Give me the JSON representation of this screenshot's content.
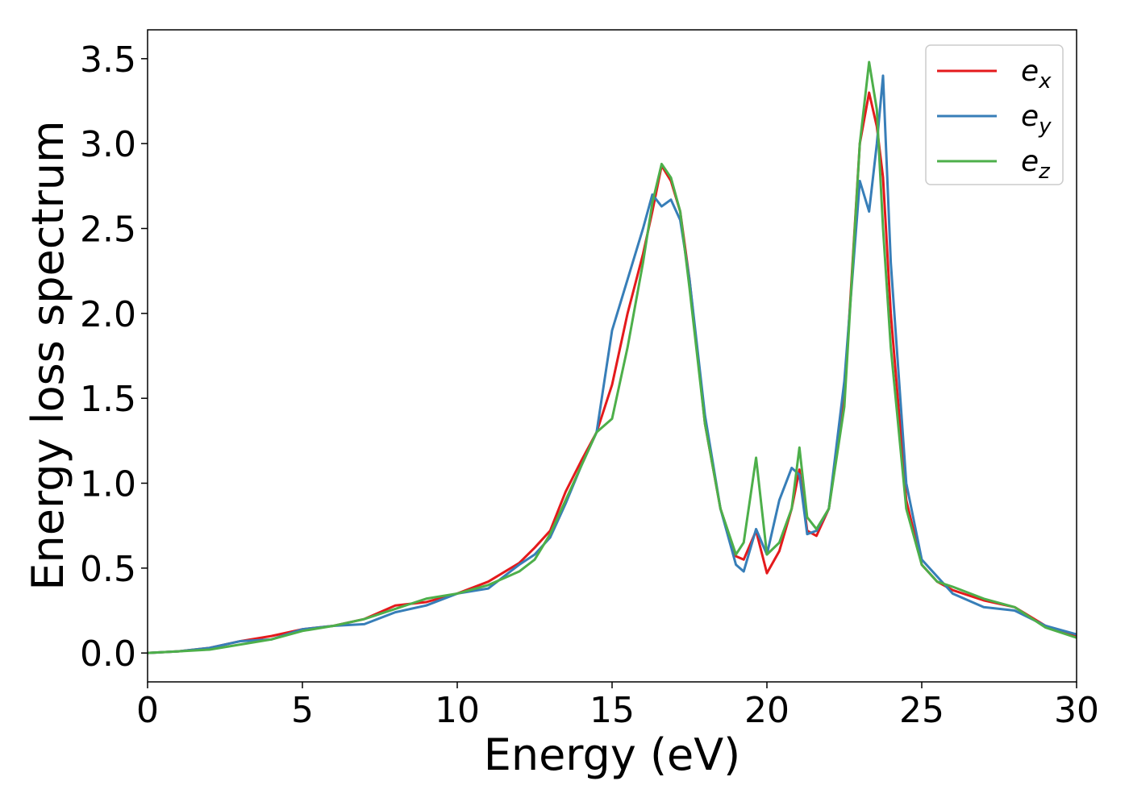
{
  "chart_data": {
    "type": "line",
    "xlabel": "Energy (eV)",
    "ylabel": "Energy loss spectrum",
    "x": [
      0,
      1,
      2,
      3,
      4,
      5,
      6,
      7,
      8,
      9,
      10,
      11,
      12,
      12.5,
      13,
      13.5,
      14,
      14.5,
      15,
      15.5,
      16,
      16.3,
      16.6,
      16.9,
      17.2,
      17.5,
      18,
      18.5,
      19,
      19.25,
      19.65,
      20,
      20.4,
      20.8,
      21.05,
      21.3,
      21.6,
      22,
      22.5,
      23,
      23.3,
      23.55,
      23.75,
      24,
      24.5,
      25,
      25.5,
      26,
      27,
      28,
      29,
      30
    ],
    "series": [
      {
        "name": "ex",
        "color": "#e41a1c",
        "values": [
          0,
          0.01,
          0.03,
          0.07,
          0.1,
          0.14,
          0.16,
          0.2,
          0.28,
          0.3,
          0.35,
          0.42,
          0.53,
          0.62,
          0.72,
          0.95,
          1.13,
          1.3,
          1.58,
          2.0,
          2.35,
          2.6,
          2.87,
          2.78,
          2.6,
          2.2,
          1.35,
          0.85,
          0.57,
          0.55,
          0.72,
          0.47,
          0.6,
          0.85,
          1.08,
          0.72,
          0.69,
          0.85,
          1.5,
          3.0,
          3.3,
          3.1,
          2.8,
          2.0,
          0.9,
          0.52,
          0.42,
          0.37,
          0.31,
          0.27,
          0.16,
          0.1
        ]
      },
      {
        "name": "ey",
        "color": "#377eb8",
        "values": [
          0,
          0.01,
          0.03,
          0.07,
          0.08,
          0.14,
          0.16,
          0.17,
          0.24,
          0.28,
          0.35,
          0.38,
          0.52,
          0.58,
          0.68,
          0.88,
          1.1,
          1.3,
          1.9,
          2.2,
          2.5,
          2.7,
          2.63,
          2.67,
          2.55,
          2.2,
          1.4,
          0.85,
          0.52,
          0.48,
          0.73,
          0.58,
          0.9,
          1.09,
          1.05,
          0.7,
          0.72,
          0.85,
          1.6,
          2.78,
          2.6,
          3.0,
          3.4,
          2.3,
          1.0,
          0.55,
          0.45,
          0.35,
          0.27,
          0.25,
          0.16,
          0.11
        ]
      },
      {
        "name": "ez",
        "color": "#4daf4a",
        "values": [
          0,
          0.01,
          0.02,
          0.05,
          0.08,
          0.13,
          0.16,
          0.2,
          0.26,
          0.32,
          0.35,
          0.4,
          0.48,
          0.55,
          0.7,
          0.9,
          1.1,
          1.3,
          1.38,
          1.8,
          2.3,
          2.65,
          2.88,
          2.8,
          2.6,
          2.15,
          1.35,
          0.85,
          0.58,
          0.65,
          1.15,
          0.58,
          0.65,
          0.85,
          1.21,
          0.8,
          0.73,
          0.85,
          1.45,
          3.0,
          3.48,
          3.2,
          2.5,
          1.8,
          0.85,
          0.52,
          0.42,
          0.39,
          0.32,
          0.27,
          0.15,
          0.09
        ]
      }
    ],
    "xlim": [
      0,
      30
    ],
    "xticks": [
      0,
      5,
      10,
      15,
      20,
      25,
      30
    ],
    "ylim": [
      -0.17,
      3.67
    ],
    "yticks": [
      {
        "value": 0,
        "label": "0.0"
      },
      {
        "value": 0.5,
        "label": "0.5"
      },
      {
        "value": 1,
        "label": "1.0"
      },
      {
        "value": 1.5,
        "label": "1.5"
      },
      {
        "value": 2,
        "label": "2.0"
      },
      {
        "value": 2.5,
        "label": "2.5"
      },
      {
        "value": 3,
        "label": "3.0"
      },
      {
        "value": 3.5,
        "label": "3.5"
      }
    ],
    "legend": "upper right"
  }
}
